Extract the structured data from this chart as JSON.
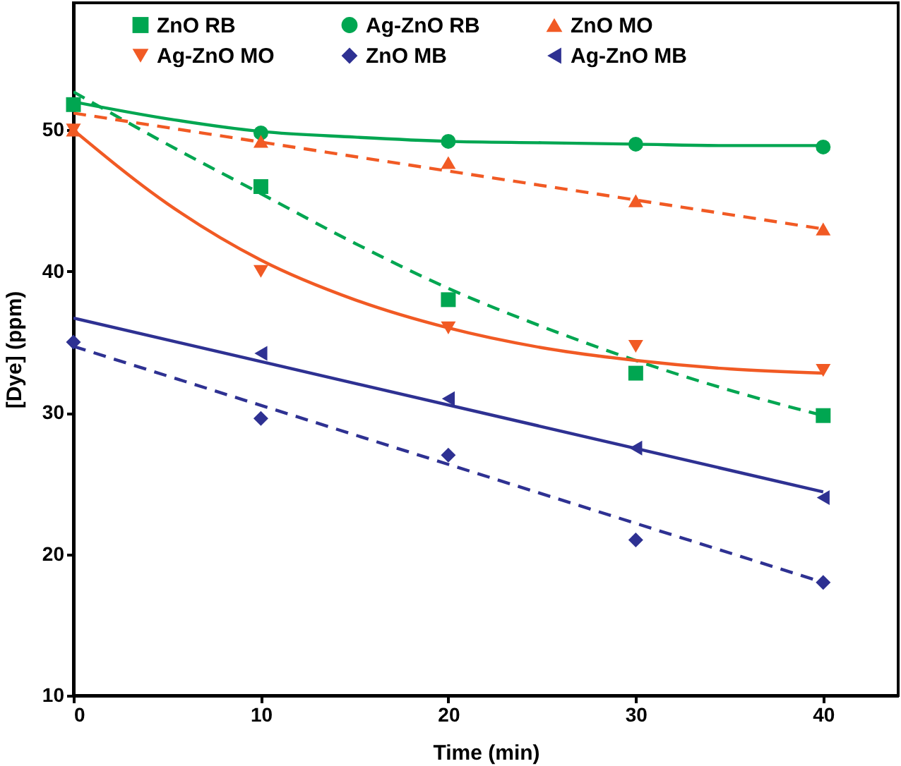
{
  "chart_data": {
    "type": "scatter",
    "xlabel": "Time (min)",
    "ylabel": "[Dye] (ppm)",
    "xlim": [
      0,
      44
    ],
    "ylim": [
      10,
      59
    ],
    "xticks": [
      0,
      10,
      20,
      30,
      40
    ],
    "yticks": [
      10,
      20,
      30,
      40,
      50
    ],
    "legend": "top",
    "x": [
      0,
      10,
      20,
      30,
      40
    ],
    "series": [
      {
        "name": "ZnO RB",
        "marker": "square",
        "color": "#00a651",
        "values": [
          51.8,
          46,
          38,
          32.8,
          29.8
        ]
      },
      {
        "name": "Ag-ZnO RB",
        "marker": "circle",
        "color": "#00a651",
        "values": [
          null,
          49.8,
          49.2,
          49.0,
          48.8
        ]
      },
      {
        "name": "ZnO MO",
        "marker": "triangle",
        "color": "#f15a24",
        "values": [
          50,
          49.2,
          47.7,
          45,
          43
        ]
      },
      {
        "name": "Ag-ZnO MO",
        "marker": "triangle-down",
        "color": "#f15a24",
        "values": [
          50,
          40,
          36,
          34.7,
          33
        ]
      },
      {
        "name": "ZnO MB",
        "marker": "diamond",
        "color": "#2e3192",
        "values": [
          35,
          29.6,
          27,
          21,
          18
        ]
      },
      {
        "name": "Ag-ZnO MB",
        "marker": "triangle-left",
        "color": "#2e3192",
        "values": [
          null,
          34.2,
          31,
          27.5,
          24
        ]
      },
      {
        "type": "line",
        "line_style": "dashed",
        "color": "#00a651",
        "x": [
          0,
          5,
          10,
          15,
          20,
          25,
          30,
          35,
          40
        ],
        "values": [
          52.7,
          49.0,
          45.5,
          42.0,
          38.8,
          36.1,
          33.7,
          31.6,
          29.8
        ]
      },
      {
        "type": "line",
        "line_style": "solid",
        "color": "#00a651",
        "x": [
          0,
          5,
          10,
          15,
          20,
          25,
          30,
          35,
          40
        ],
        "values": [
          52.0,
          50.8,
          49.9,
          49.5,
          49.2,
          49.1,
          49.0,
          48.9,
          48.9
        ]
      },
      {
        "type": "line",
        "line_style": "dashed",
        "color": "#f15a24",
        "x": [
          0,
          40
        ],
        "values": [
          51.2,
          43.0
        ]
      },
      {
        "type": "line",
        "line_style": "solid",
        "color": "#f15a24",
        "x": [
          0,
          5,
          10,
          15,
          20,
          25,
          30,
          35,
          40
        ],
        "values": [
          50,
          44.8,
          40.8,
          38.0,
          36.0,
          34.6,
          33.7,
          33.1,
          32.8
        ]
      },
      {
        "type": "line",
        "line_style": "dashed",
        "color": "#2e3192",
        "x": [
          0,
          40
        ],
        "values": [
          34.7,
          18.0
        ]
      },
      {
        "type": "line",
        "line_style": "solid",
        "color": "#2e3192",
        "x": [
          0,
          40
        ],
        "values": [
          36.7,
          24.4
        ]
      }
    ]
  }
}
